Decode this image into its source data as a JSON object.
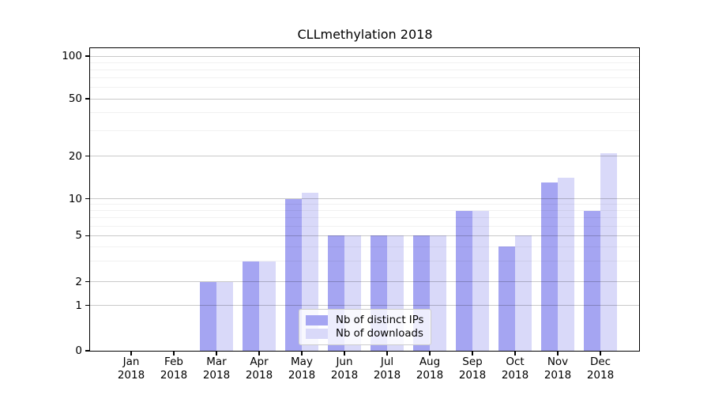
{
  "chart_data": {
    "type": "bar",
    "title": "CLLmethylation 2018",
    "year_label": "2018",
    "categories": [
      "Jan",
      "Feb",
      "Mar",
      "Apr",
      "May",
      "Jun",
      "Jul",
      "Aug",
      "Sep",
      "Oct",
      "Nov",
      "Dec"
    ],
    "series": [
      {
        "name": "Nb of distinct IPs",
        "color": "#a5a5f2",
        "values": [
          0,
          0,
          2,
          3,
          10,
          5,
          5,
          5,
          8,
          4,
          13,
          8
        ]
      },
      {
        "name": "Nb of downloads",
        "color": "#d9d9f9",
        "values": [
          0,
          0,
          2,
          3,
          11,
          5,
          5,
          5,
          8,
          5,
          14,
          21
        ]
      }
    ],
    "xlabel": "",
    "ylabel": "",
    "yscale": "symlog",
    "ylim": [
      0,
      100
    ],
    "y_ticks": [
      {
        "value": 100,
        "label": "100"
      },
      {
        "value": 50,
        "label": "50"
      },
      {
        "value": 20,
        "label": "20"
      },
      {
        "value": 10,
        "label": "10"
      },
      {
        "value": 5,
        "label": "5"
      },
      {
        "value": 2,
        "label": "2"
      },
      {
        "value": 1,
        "label": "1"
      },
      {
        "value": 0,
        "label": "0"
      }
    ],
    "y_minor_gridlines": [
      3,
      4,
      6,
      7,
      8,
      9,
      30,
      40,
      60,
      70,
      80,
      90
    ],
    "grid": "on",
    "legend_position": "lower-center-inside"
  }
}
